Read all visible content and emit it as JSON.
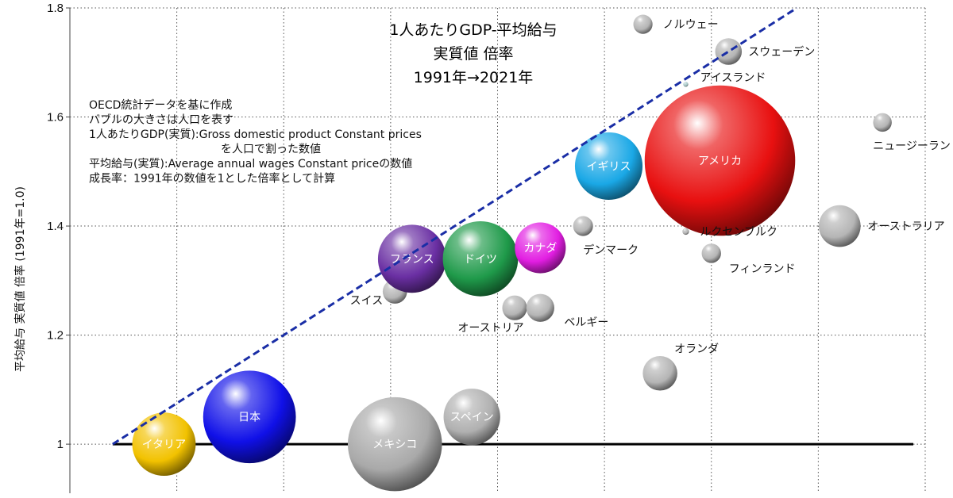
{
  "chart_data": {
    "type": "bubble",
    "title_lines": [
      "1人あたりGDP-平均給与",
      "実質値 倍率",
      "1991年→2021年"
    ],
    "notes": [
      "OECD統計データを基に作成",
      "バブルの大きさは人口を表す",
      "1人あたりGDP(実質):Gross domestic product Constant prices",
      "を人口で割った数値",
      "平均給与(実質):Average annual wages Constant priceの数値",
      "成長率：1991年の数値を1とした倍率として計算"
    ],
    "ylabel": "平均給与 実質値 倍率 (1991年=1.0)",
    "xlabel": "",
    "xlim": [
      0.95,
      1.95
    ],
    "ylim": [
      0.91,
      1.8
    ],
    "yticks": [
      1.0,
      1.2,
      1.4,
      1.6,
      1.8
    ],
    "ytick_labels": [
      "1",
      "1.2",
      "1.4",
      "1.6",
      "1.8"
    ],
    "grid": true,
    "reference_line": {
      "type": "diagonal",
      "from": [
        1.0,
        1.0
      ],
      "to": [
        1.8,
        1.8
      ],
      "color": "#1a2ea6",
      "style": "dashed"
    },
    "baseline": {
      "y": 1.0,
      "color": "#000000"
    },
    "series": [
      {
        "label": "イタリア",
        "x": 1.06,
        "y": 1.0,
        "pop": 59,
        "color": "#f2c200",
        "label_inside": true,
        "label_color": "#000000"
      },
      {
        "label": "日本",
        "x": 1.16,
        "y": 1.05,
        "pop": 126,
        "color": "#1010e8",
        "label_inside": true,
        "label_color": "#ffffff"
      },
      {
        "label": "メキシコ",
        "x": 1.33,
        "y": 1.0,
        "pop": 130,
        "color": "#a9a9a9",
        "label_inside": true,
        "label_color": "#000000"
      },
      {
        "label": "スペイン",
        "x": 1.42,
        "y": 1.05,
        "pop": 47,
        "color": "#b0b0b0",
        "label_inside": true,
        "label_color": "#000000"
      },
      {
        "label": "スイス",
        "x": 1.33,
        "y": 1.28,
        "pop": 8.7,
        "color": "#b5b5b5",
        "label_inside": false
      },
      {
        "label": "フランス",
        "x": 1.35,
        "y": 1.34,
        "pop": 68,
        "color": "#6a2fa3",
        "label_inside": true,
        "label_color": "#ffffff"
      },
      {
        "label": "ドイツ",
        "x": 1.43,
        "y": 1.34,
        "pop": 83,
        "color": "#1f9a4a",
        "label_inside": true,
        "label_color": "#ffffff"
      },
      {
        "label": "カナダ",
        "x": 1.5,
        "y": 1.36,
        "pop": 38,
        "color": "#e21ee2",
        "label_inside": true,
        "label_color": "#ffffff"
      },
      {
        "label": "オーストリア",
        "x": 1.47,
        "y": 1.25,
        "pop": 9,
        "color": "#b5b5b5",
        "label_inside": false
      },
      {
        "label": "ベルギー",
        "x": 1.5,
        "y": 1.25,
        "pop": 11.5,
        "color": "#b5b5b5",
        "label_inside": false
      },
      {
        "label": "デンマーク",
        "x": 1.55,
        "y": 1.4,
        "pop": 5.8,
        "color": "#b5b5b5",
        "label_inside": false
      },
      {
        "label": "イギリス",
        "x": 1.58,
        "y": 1.51,
        "pop": 67,
        "color": "#1aa8e6",
        "label_inside": true,
        "label_color": "#ffffff"
      },
      {
        "label": "アメリカ",
        "x": 1.71,
        "y": 1.52,
        "pop": 332,
        "color": "#e81010",
        "label_inside": true,
        "label_color": "#ffffff"
      },
      {
        "label": "ノルウェー",
        "x": 1.62,
        "y": 1.77,
        "pop": 5.4,
        "color": "#b5b5b5",
        "label_inside": false
      },
      {
        "label": "スウェーデン",
        "x": 1.72,
        "y": 1.72,
        "pop": 10.4,
        "color": "#b5b5b5",
        "label_inside": false
      },
      {
        "label": "アイスランド",
        "x": 1.67,
        "y": 1.66,
        "pop": 0.37,
        "color": "#a8c8c8",
        "label_inside": false
      },
      {
        "label": "ルクセンブルク",
        "x": 1.67,
        "y": 1.39,
        "pop": 0.64,
        "color": "#b5b5b5",
        "label_inside": false
      },
      {
        "label": "フィンランド",
        "x": 1.7,
        "y": 1.35,
        "pop": 5.5,
        "color": "#b5b5b5",
        "label_inside": false
      },
      {
        "label": "オランダ",
        "x": 1.64,
        "y": 1.13,
        "pop": 17.5,
        "color": "#b5b5b5",
        "label_inside": false
      },
      {
        "label": "オーストラリア",
        "x": 1.85,
        "y": 1.4,
        "pop": 25.7,
        "color": "#b5b5b5",
        "label_inside": false
      },
      {
        "label": "ニュージーランド",
        "x": 1.9,
        "y": 1.59,
        "pop": 5.1,
        "color": "#b5b5b5",
        "label_inside": false
      }
    ]
  }
}
